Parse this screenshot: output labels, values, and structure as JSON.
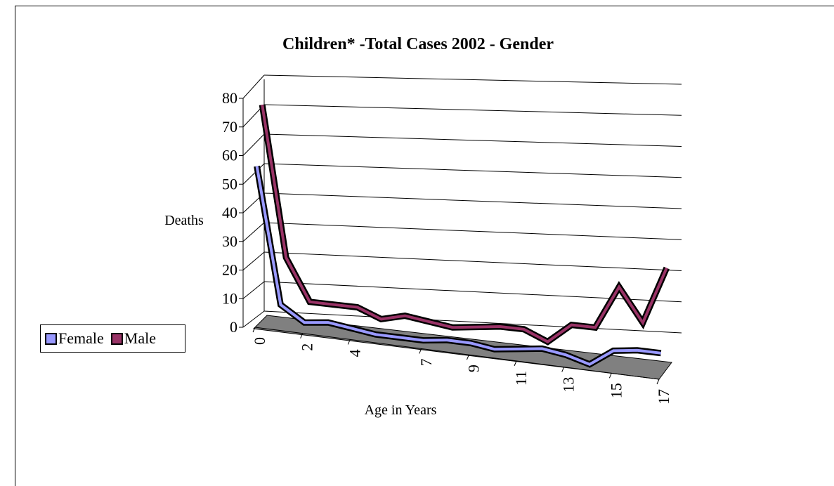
{
  "chart_data": {
    "type": "line",
    "title": "Children* -Total Cases 2002 - Gender",
    "xlabel": "Age in Years",
    "ylabel": "Deaths",
    "ylim": [
      0,
      80
    ],
    "yticks": [
      0,
      10,
      20,
      30,
      40,
      50,
      60,
      70,
      80
    ],
    "x": [
      0,
      1,
      2,
      3,
      4,
      5,
      6,
      7,
      8,
      9,
      10,
      11,
      12,
      13,
      14,
      15,
      16,
      17
    ],
    "xtick_labels": [
      "0",
      "2",
      "4",
      "7",
      "9",
      "11",
      "13",
      "15",
      "17"
    ],
    "series": [
      {
        "name": "Female",
        "color": "#9999ff",
        "values": [
          54,
          8,
          3,
          4,
          3,
          2,
          2,
          2,
          3,
          3,
          2,
          3,
          4,
          3,
          1,
          6,
          7,
          7
        ]
      },
      {
        "name": "Male",
        "color": "#993366",
        "values": [
          73,
          22,
          8,
          8,
          8,
          5,
          7,
          6,
          5,
          6,
          7,
          7,
          4,
          10,
          10,
          23,
          13,
          30
        ]
      }
    ],
    "grid": true,
    "legend_position": "left",
    "style": "3d-perspective-line",
    "floor_color": "#808080"
  }
}
